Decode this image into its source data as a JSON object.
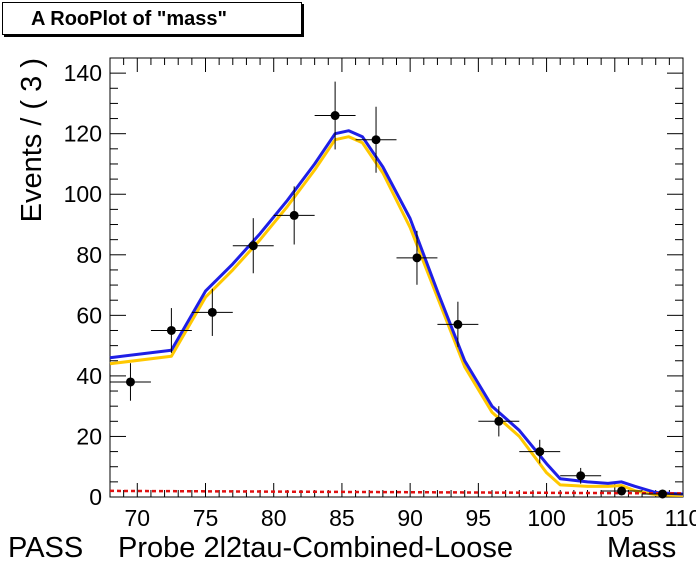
{
  "title": "A RooPlot of \"mass\"",
  "chart_data": {
    "type": "line",
    "title": "A RooPlot of \"mass\"",
    "ylabel": "Events / ( 3 )",
    "xlabel_parts": [
      "PASS",
      "Probe 2l2tau-Combined-Loose",
      "Mass"
    ],
    "xlim": [
      68,
      110
    ],
    "ylim": [
      0,
      145
    ],
    "xticks": [
      70,
      75,
      80,
      85,
      90,
      95,
      100,
      105,
      110
    ],
    "yticks": [
      0,
      20,
      40,
      60,
      80,
      100,
      120,
      140
    ],
    "data_points": {
      "name": "data",
      "x": [
        69.5,
        72.5,
        75.5,
        78.5,
        81.5,
        84.5,
        87.5,
        90.5,
        93.5,
        96.5,
        99.5,
        102.5,
        105.5,
        108.5
      ],
      "y": [
        38,
        55,
        61,
        83,
        93,
        126,
        118,
        79,
        57,
        25,
        15,
        7,
        2,
        1
      ],
      "x_err": 1.5,
      "y_err": [
        6.2,
        7.4,
        7.8,
        9.1,
        9.6,
        11.2,
        10.9,
        8.9,
        7.5,
        5.0,
        3.9,
        2.6,
        1.4,
        1.0
      ]
    },
    "series": [
      {
        "color": "#1f1fe6",
        "x": [
          68,
          72.5,
          75,
          77,
          79,
          81,
          83,
          84.5,
          85.5,
          86.5,
          88,
          90,
          92,
          94,
          96,
          98,
          100,
          101,
          103,
          104.5,
          105.5,
          106.5,
          108,
          109,
          110
        ],
        "y": [
          46,
          48.5,
          68,
          77,
          87,
          98,
          110,
          120,
          121,
          119,
          109,
          92,
          68,
          45,
          30,
          22,
          11,
          6,
          5,
          4.5,
          5,
          3.5,
          1.5,
          1.2,
          1
        ]
      },
      {
        "color": "#ffc800",
        "x": [
          68,
          72.5,
          75,
          77,
          79,
          81,
          83,
          84.5,
          85.5,
          86.5,
          88,
          90,
          92,
          94,
          96,
          98,
          100,
          101,
          103,
          104.5,
          105.5,
          106.5,
          108,
          109,
          110
        ],
        "y": [
          44,
          46.5,
          66,
          75,
          85,
          96,
          108,
          118,
          119,
          117,
          107,
          89,
          66,
          43,
          28,
          20,
          8,
          4,
          3.5,
          3.5,
          3.8,
          2,
          0.8,
          0.6,
          0.5
        ]
      },
      {
        "color": "#e01010",
        "dashed": true,
        "x": [
          68,
          110
        ],
        "y": [
          2,
          1.2
        ]
      }
    ]
  }
}
